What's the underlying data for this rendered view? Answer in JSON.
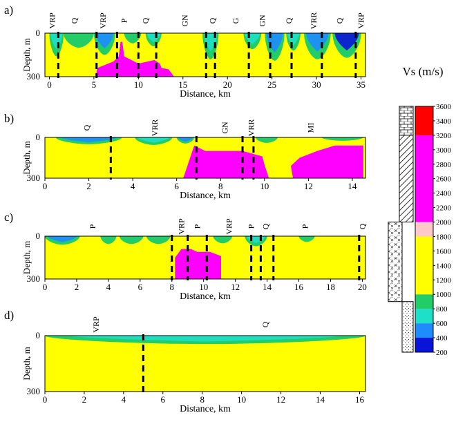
{
  "chart_data": [
    {
      "type": "heatmap",
      "panel_label": "a)",
      "xlabel": "Distance, km",
      "ylabel": "Depth, m",
      "xlim": [
        -0.5,
        35.5
      ],
      "xticks": [
        "0",
        "5",
        "10",
        "15",
        "20",
        "25",
        "30",
        "35"
      ],
      "xtick_values": [
        0,
        5,
        10,
        15,
        20,
        25,
        30,
        35
      ],
      "ylim": [
        0,
        300
      ],
      "yticks": [
        "0",
        "300"
      ],
      "ytick_values": [
        0,
        300
      ],
      "annotations": [
        {
          "x": 0.3,
          "text": "VRP"
        },
        {
          "x": 2.8,
          "text": "Q"
        },
        {
          "x": 6.0,
          "text": "VRP"
        },
        {
          "x": 8.4,
          "text": "P"
        },
        {
          "x": 10.8,
          "text": "Q"
        },
        {
          "x": 15.2,
          "text": "GN"
        },
        {
          "x": 18.3,
          "text": "Q"
        },
        {
          "x": 20.9,
          "text": "G"
        },
        {
          "x": 23.9,
          "text": "GN"
        },
        {
          "x": 26.9,
          "text": "Q"
        },
        {
          "x": 29.7,
          "text": "VRR"
        },
        {
          "x": 32.6,
          "text": "Q"
        },
        {
          "x": 35.0,
          "text": "VRP"
        }
      ],
      "boundaries_km": [
        1.0,
        5.3,
        7.6,
        10.0,
        12.0,
        17.6,
        18.6,
        22.4,
        24.8,
        27.2,
        30.6,
        34.4
      ],
      "low_velocity_zones": [
        {
          "x0": 0.0,
          "x1": 1.6,
          "depth_max": 160,
          "vs": 600
        },
        {
          "x0": 1.6,
          "x1": 5.0,
          "depth_max": 100,
          "vs": 800
        },
        {
          "x0": 5.0,
          "x1": 7.4,
          "depth_max": 150,
          "vs": 400
        },
        {
          "x0": 8.4,
          "x1": 10.3,
          "depth_max": 70,
          "vs": 800
        },
        {
          "x0": 10.8,
          "x1": 12.6,
          "depth_max": 90,
          "vs": 700
        },
        {
          "x0": 17.2,
          "x1": 19.0,
          "depth_max": 180,
          "vs": 600
        },
        {
          "x0": 21.8,
          "x1": 23.8,
          "depth_max": 110,
          "vs": 700
        },
        {
          "x0": 24.2,
          "x1": 26.4,
          "depth_max": 190,
          "vs": 500
        },
        {
          "x0": 26.6,
          "x1": 28.2,
          "depth_max": 120,
          "vs": 700
        },
        {
          "x0": 28.6,
          "x1": 31.6,
          "depth_max": 180,
          "vs": 400
        },
        {
          "x0": 31.8,
          "x1": 35.0,
          "depth_max": 170,
          "vs": 300
        }
      ],
      "high_velocity_zones": [
        {
          "polygon": [
            [
              5.2,
              300
            ],
            [
              5.4,
              240
            ],
            [
              7.2,
              195
            ],
            [
              7.8,
              160
            ],
            [
              8.0,
              60
            ],
            [
              8.2,
              60
            ],
            [
              8.4,
              160
            ],
            [
              10.0,
              210
            ],
            [
              11.8,
              185
            ],
            [
              12.4,
              210
            ],
            [
              12.6,
              240
            ],
            [
              13.4,
              250
            ],
            [
              14.0,
              300
            ]
          ],
          "vs": 2600
        }
      ]
    },
    {
      "type": "heatmap",
      "panel_label": "b)",
      "xlabel": "Distance, km",
      "ylabel": "Depth, m",
      "xlim": [
        0,
        14.6
      ],
      "xticks": [
        "0",
        "2",
        "4",
        "6",
        "8",
        "10",
        "12",
        "14"
      ],
      "xtick_values": [
        0,
        2,
        4,
        6,
        8,
        10,
        12,
        14
      ],
      "ylim": [
        0,
        300
      ],
      "yticks": [
        "0",
        "300"
      ],
      "ytick_values": [
        0,
        300
      ],
      "annotations": [
        {
          "x": 1.9,
          "text": "Q"
        },
        {
          "x": 5.0,
          "text": "VRR"
        },
        {
          "x": 8.2,
          "text": "GN"
        },
        {
          "x": 9.4,
          "text": "VRR"
        },
        {
          "x": 12.1,
          "text": "MI"
        }
      ],
      "boundaries_km": [
        3.0,
        6.9,
        9.0,
        9.5
      ],
      "low_velocity_zones": [
        {
          "x0": 0.5,
          "x1": 3.5,
          "depth_max": 50,
          "vs": 500
        },
        {
          "x0": 4.1,
          "x1": 5.8,
          "depth_max": 55,
          "vs": 700
        },
        {
          "x0": 6.0,
          "x1": 6.8,
          "depth_max": 45,
          "vs": 500
        },
        {
          "x0": 9.6,
          "x1": 10.6,
          "depth_max": 40,
          "vs": 800
        },
        {
          "x0": 12.6,
          "x1": 14.5,
          "depth_max": 25,
          "vs": 800
        }
      ],
      "high_velocity_zones": [
        {
          "polygon": [
            [
              6.3,
              300
            ],
            [
              6.8,
              60
            ],
            [
              7.3,
              100
            ],
            [
              9.0,
              100
            ],
            [
              9.9,
              140
            ],
            [
              10.0,
              200
            ],
            [
              10.2,
              300
            ]
          ],
          "vs": 2600
        },
        {
          "polygon": [
            [
              11.3,
              300
            ],
            [
              11.2,
              210
            ],
            [
              11.6,
              150
            ],
            [
              12.4,
              100
            ],
            [
              13.2,
              60
            ],
            [
              14.5,
              60
            ],
            [
              14.5,
              300
            ]
          ],
          "vs": 2600
        }
      ]
    },
    {
      "type": "heatmap",
      "panel_label": "c)",
      "xlabel": "Distance, km",
      "ylabel": "Depth, m",
      "xlim": [
        0,
        20.2
      ],
      "xticks": [
        "0",
        "2",
        "4",
        "6",
        "8",
        "10",
        "12",
        "14",
        "16",
        "18",
        "20"
      ],
      "xtick_values": [
        0,
        2,
        4,
        6,
        8,
        10,
        12,
        14,
        16,
        18,
        20
      ],
      "ylim": [
        0,
        300
      ],
      "yticks": [
        "0",
        "300"
      ],
      "ytick_values": [
        0,
        300
      ],
      "annotations": [
        {
          "x": 3.0,
          "text": "P"
        },
        {
          "x": 8.6,
          "text": "VRP"
        },
        {
          "x": 9.6,
          "text": "P"
        },
        {
          "x": 11.6,
          "text": "VRP"
        },
        {
          "x": 13.0,
          "text": "P"
        },
        {
          "x": 13.9,
          "text": "Q"
        },
        {
          "x": 16.4,
          "text": "P"
        },
        {
          "x": 20.0,
          "text": "Q"
        }
      ],
      "boundaries_km": [
        8.0,
        9.0,
        10.2,
        13.0,
        13.6,
        14.4,
        19.8
      ],
      "low_velocity_zones": [
        {
          "x0": 0.0,
          "x1": 2.2,
          "depth_max": 60,
          "vs": 500
        },
        {
          "x0": 3.5,
          "x1": 4.5,
          "depth_max": 55,
          "vs": 800
        },
        {
          "x0": 4.7,
          "x1": 6.2,
          "depth_max": 55,
          "vs": 800
        },
        {
          "x0": 6.4,
          "x1": 7.9,
          "depth_max": 55,
          "vs": 800
        },
        {
          "x0": 10.6,
          "x1": 11.8,
          "depth_max": 50,
          "vs": 800
        },
        {
          "x0": 12.6,
          "x1": 14.0,
          "depth_max": 70,
          "vs": 700
        },
        {
          "x0": 16.0,
          "x1": 17.0,
          "depth_max": 40,
          "vs": 800
        }
      ],
      "high_velocity_zones": [
        {
          "polygon": [
            [
              8.2,
              300
            ],
            [
              8.2,
              150
            ],
            [
              8.6,
              90
            ],
            [
              9.2,
              90
            ],
            [
              9.6,
              110
            ],
            [
              10.4,
              110
            ],
            [
              11.1,
              140
            ],
            [
              11.1,
              300
            ]
          ],
          "vs": 2600
        }
      ]
    },
    {
      "type": "heatmap",
      "panel_label": "d)",
      "xlabel": "Distance, km",
      "ylabel": "Depth, m",
      "xlim": [
        0,
        16.3
      ],
      "xticks": [
        "0",
        "2",
        "4",
        "6",
        "8",
        "10",
        "12",
        "14",
        "16"
      ],
      "xtick_values": [
        0,
        2,
        4,
        6,
        8,
        10,
        12,
        14,
        16
      ],
      "ylim": [
        0,
        300
      ],
      "yticks": [
        "0",
        "300"
      ],
      "ytick_values": [
        0,
        300
      ],
      "annotations": [
        {
          "x": 2.6,
          "text": "VRP"
        },
        {
          "x": 11.2,
          "text": "Q"
        }
      ],
      "boundaries_km": [
        5.0
      ],
      "low_velocity_zones": [
        {
          "x0": 0.0,
          "x1": 16.3,
          "depth_max": 45,
          "vs": 700
        }
      ],
      "high_velocity_zones": []
    }
  ],
  "colorbar": {
    "title": "Vs (m/s)",
    "ticks": [
      3600,
      3400,
      3200,
      3000,
      2800,
      2600,
      2400,
      2200,
      2000,
      1800,
      1600,
      1400,
      1200,
      1000,
      800,
      600,
      400,
      200
    ],
    "tick_labels": [
      "3600",
      "3400",
      "3200",
      "3000",
      "2800",
      "2600",
      "2400",
      "2200",
      "2000",
      "1800",
      "1600",
      "1400",
      "1200",
      "1000",
      "800",
      "600",
      "400",
      "200"
    ],
    "range": [
      200,
      3600
    ],
    "color_bands": [
      {
        "from": 200,
        "to": 400,
        "color": "#0a14d8"
      },
      {
        "from": 400,
        "to": 600,
        "color": "#1e8cff"
      },
      {
        "from": 600,
        "to": 800,
        "color": "#1ee0c8"
      },
      {
        "from": 800,
        "to": 1000,
        "color": "#22cc66"
      },
      {
        "from": 1000,
        "to": 1800,
        "color": "#ffff00"
      },
      {
        "from": 1800,
        "to": 2000,
        "color": "#ffc8c8"
      },
      {
        "from": 2000,
        "to": 3200,
        "color": "#ff00ff"
      },
      {
        "from": 3200,
        "to": 3600,
        "color": "#ff0000"
      }
    ],
    "lithology_column": [
      {
        "from": 3600,
        "to": 3200,
        "pattern": "brick"
      },
      {
        "from": 3200,
        "to": 2000,
        "pattern": "diagonal"
      },
      {
        "from": 2000,
        "to": 900,
        "pattern": "crosshatch"
      },
      {
        "from": 900,
        "to": 200,
        "pattern": "dots"
      }
    ]
  },
  "colors": {
    "background": "#ffff00",
    "boundary": "#000000"
  }
}
